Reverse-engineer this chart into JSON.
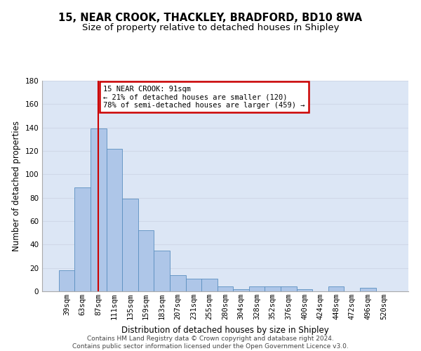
{
  "title": "15, NEAR CROOK, THACKLEY, BRADFORD, BD10 8WA",
  "subtitle": "Size of property relative to detached houses in Shipley",
  "xlabel": "Distribution of detached houses by size in Shipley",
  "ylabel": "Number of detached properties",
  "categories": [
    "39sqm",
    "63sqm",
    "87sqm",
    "111sqm",
    "135sqm",
    "159sqm",
    "183sqm",
    "207sqm",
    "231sqm",
    "255sqm",
    "280sqm",
    "304sqm",
    "328sqm",
    "352sqm",
    "376sqm",
    "400sqm",
    "424sqm",
    "448sqm",
    "472sqm",
    "496sqm",
    "520sqm"
  ],
  "values": [
    18,
    89,
    139,
    122,
    79,
    52,
    35,
    14,
    11,
    11,
    4,
    2,
    4,
    4,
    4,
    2,
    0,
    4,
    0,
    3,
    0
  ],
  "bar_color": "#aec6e8",
  "bar_edge_color": "#5a8fc0",
  "vline_x": 2,
  "vline_color": "#cc0000",
  "ylim": [
    0,
    180
  ],
  "yticks": [
    0,
    20,
    40,
    60,
    80,
    100,
    120,
    140,
    160,
    180
  ],
  "annotation_text": "15 NEAR CROOK: 91sqm\n← 21% of detached houses are smaller (120)\n78% of semi-detached houses are larger (459) →",
  "annotation_box_facecolor": "#ffffff",
  "annotation_box_edgecolor": "#cc0000",
  "grid_color": "#d0d8e8",
  "bg_color": "#dce6f5",
  "footer_line1": "Contains HM Land Registry data © Crown copyright and database right 2024.",
  "footer_line2": "Contains public sector information licensed under the Open Government Licence v3.0.",
  "title_fontsize": 10.5,
  "subtitle_fontsize": 9.5,
  "xlabel_fontsize": 8.5,
  "ylabel_fontsize": 8.5,
  "tick_fontsize": 7.5,
  "annotation_fontsize": 7.5,
  "footer_fontsize": 6.5
}
